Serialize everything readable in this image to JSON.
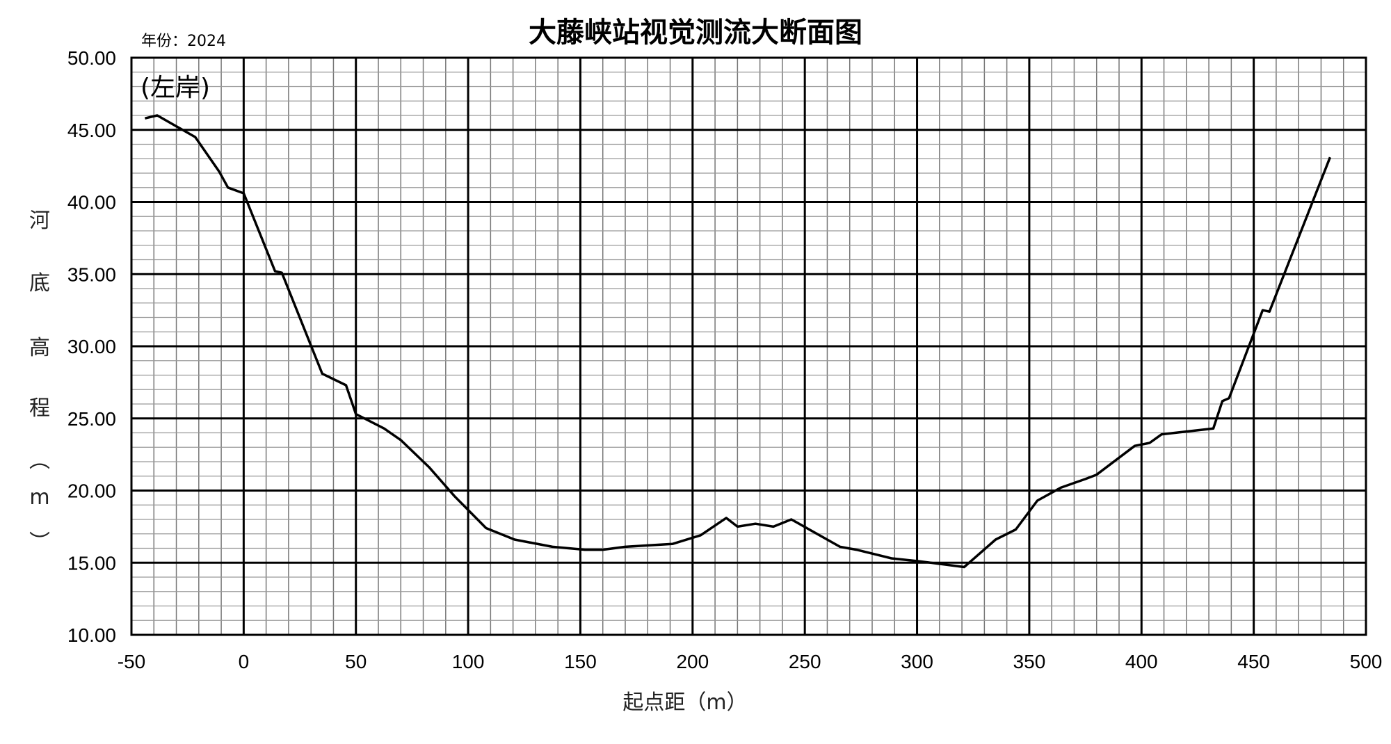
{
  "chart_data": {
    "type": "line",
    "title": "大藤峡站视觉测流大断面图",
    "annotations": {
      "year": "年份：2024",
      "bank": "(左岸)"
    },
    "xlabel": "起点距（m）",
    "ylabel": "河底高程（m）",
    "ylabel_chars": [
      "河",
      "底",
      "高",
      "程",
      "︵",
      "m",
      "︶"
    ],
    "xlim": [
      -50,
      500
    ],
    "ylim": [
      10,
      50
    ],
    "x_ticks": [
      "-50",
      "0",
      "50",
      "100",
      "150",
      "200",
      "250",
      "300",
      "350",
      "400",
      "450",
      "500"
    ],
    "y_ticks": [
      "50.00",
      "45.00",
      "40.00",
      "35.00",
      "30.00",
      "25.00",
      "20.00",
      "15.00",
      "10.00"
    ],
    "grid": {
      "major_x": 50,
      "minor_x": 10,
      "major_y": 5,
      "minor_y": 1
    },
    "line_color": "#000000",
    "series": [
      {
        "x": [
          -44,
          -38.5,
          -21.6,
          -10.9,
          -7,
          0,
          14,
          17,
          35,
          45.6,
          50,
          62.6,
          70,
          82.7,
          94,
          108,
          120.7,
          137.6,
          152,
          160,
          170,
          180,
          191,
          203.6,
          215,
          220,
          228,
          236,
          244,
          265.7,
          273,
          288.6,
          301,
          321,
          335,
          344,
          353.6,
          364,
          375,
          380,
          397,
          403.6,
          409,
          432,
          436,
          439,
          454,
          457,
          484
        ],
        "y": [
          45.8,
          46.0,
          44.5,
          42.1,
          41.0,
          40.6,
          35.2,
          35.1,
          28.1,
          27.3,
          25.3,
          24.3,
          23.5,
          21.6,
          19.6,
          17.4,
          16.6,
          16.1,
          15.9,
          15.9,
          16.1,
          16.2,
          16.3,
          16.9,
          18.1,
          17.5,
          17.7,
          17.5,
          18.0,
          16.1,
          15.9,
          15.3,
          15.1,
          14.7,
          16.6,
          17.3,
          19.3,
          20.2,
          20.8,
          21.1,
          23.1,
          23.3,
          23.9,
          24.3,
          26.2,
          26.4,
          32.5,
          32.4,
          43.1
        ]
      }
    ]
  }
}
